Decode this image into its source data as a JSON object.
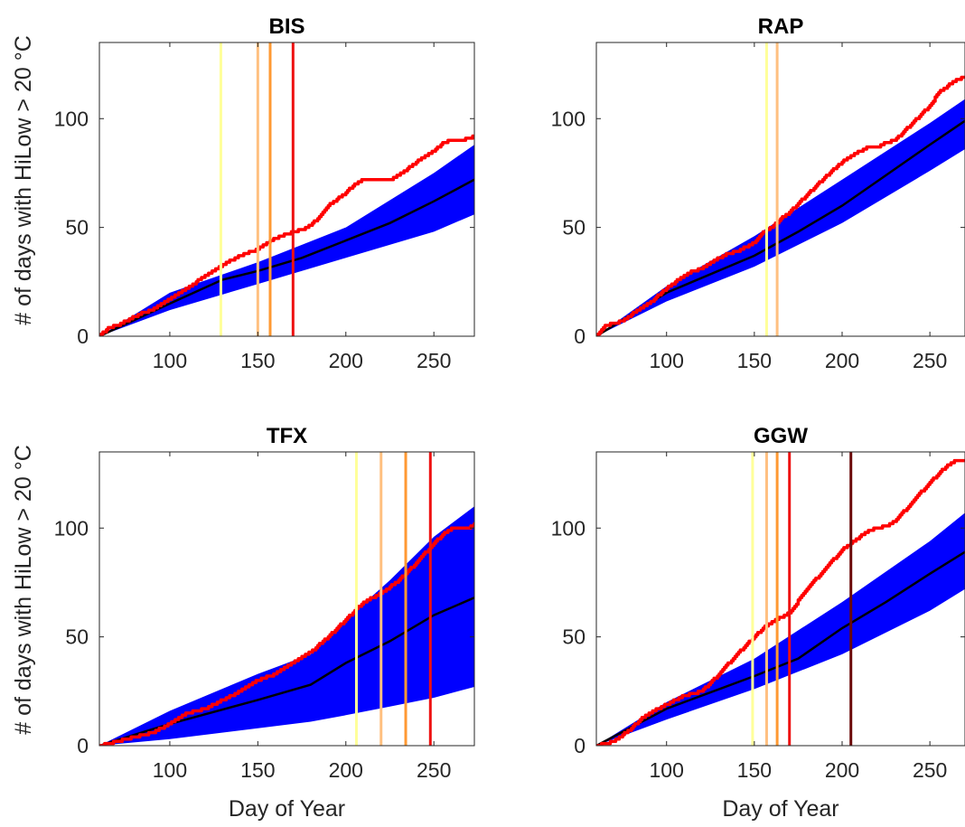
{
  "chart_data": [
    {
      "type": "area",
      "title": "BIS",
      "xlabel": "",
      "ylabel": "# of days with HiLow > 20 °C",
      "xlim": [
        60,
        273
      ],
      "ylim": [
        0,
        135
      ],
      "xticks": [
        100,
        150,
        200,
        250
      ],
      "yticks": [
        0,
        50,
        100
      ],
      "band": {
        "x": [
          60,
          100,
          150,
          200,
          250,
          273
        ],
        "lower": [
          0,
          12,
          24,
          36,
          48,
          56
        ],
        "upper": [
          0,
          20,
          34,
          50,
          75,
          88
        ]
      },
      "mean": {
        "x": [
          60,
          100,
          130,
          150,
          175,
          200,
          225,
          250,
          273
        ],
        "y": [
          0,
          15,
          26,
          30,
          36,
          44,
          52,
          62,
          72
        ]
      },
      "observed": {
        "x": [
          60,
          65,
          70,
          75,
          80,
          85,
          90,
          95,
          100,
          105,
          110,
          115,
          120,
          125,
          130,
          140,
          150,
          160,
          170,
          175,
          180,
          185,
          190,
          195,
          200,
          205,
          210,
          220,
          225,
          230,
          240,
          250,
          255,
          260,
          265,
          270,
          273
        ],
        "y": [
          0,
          4,
          5,
          7,
          9,
          11,
          12,
          15,
          17,
          20,
          22,
          25,
          28,
          30,
          33,
          37,
          40,
          45,
          48,
          49,
          51,
          55,
          60,
          63,
          66,
          70,
          72,
          72,
          72,
          74,
          80,
          85,
          89,
          90,
          90,
          91,
          92
        ]
      },
      "vlines": [
        {
          "x": 129,
          "color": "#ffff99"
        },
        {
          "x": 150,
          "color": "#ffc080"
        },
        {
          "x": 157,
          "color": "#ff9933"
        },
        {
          "x": 170,
          "color": "#ee1111"
        }
      ]
    },
    {
      "type": "area",
      "title": "RAP",
      "xlabel": "",
      "ylabel": "",
      "xlim": [
        60,
        270
      ],
      "ylim": [
        0,
        135
      ],
      "xticks": [
        100,
        150,
        200,
        250
      ],
      "yticks": [
        0,
        50,
        100
      ],
      "band": {
        "x": [
          60,
          100,
          150,
          200,
          250,
          270
        ],
        "lower": [
          0,
          16,
          32,
          52,
          76,
          86
        ],
        "upper": [
          0,
          23,
          46,
          72,
          98,
          109
        ]
      },
      "mean": {
        "x": [
          60,
          100,
          150,
          175,
          200,
          225,
          250,
          270
        ],
        "y": [
          0,
          20,
          37,
          48,
          60,
          74,
          88,
          99
        ]
      },
      "observed": {
        "x": [
          60,
          65,
          70,
          75,
          80,
          90,
          100,
          110,
          115,
          120,
          125,
          130,
          135,
          140,
          150,
          155,
          160,
          165,
          170,
          180,
          190,
          200,
          210,
          215,
          220,
          225,
          230,
          240,
          250,
          255,
          260,
          265,
          270
        ],
        "y": [
          0,
          5,
          6,
          7,
          10,
          15,
          22,
          28,
          30,
          31,
          34,
          36,
          38,
          39,
          43,
          48,
          50,
          54,
          57,
          65,
          73,
          80,
          85,
          87,
          87,
          89,
          90,
          98,
          106,
          112,
          115,
          118,
          119
        ]
      },
      "vlines": [
        {
          "x": 157,
          "color": "#ffff99"
        },
        {
          "x": 163,
          "color": "#ffc080"
        }
      ]
    },
    {
      "type": "area",
      "title": "TFX",
      "xlabel": "Day of Year",
      "ylabel": "# of days with HiLow > 20 °C",
      "xlim": [
        60,
        273
      ],
      "ylim": [
        0,
        135
      ],
      "xticks": [
        100,
        150,
        200,
        250
      ],
      "yticks": [
        0,
        50,
        100
      ],
      "band": {
        "x": [
          60,
          100,
          150,
          180,
          200,
          225,
          250,
          273
        ],
        "lower": [
          0,
          3,
          8,
          11,
          14,
          18,
          22,
          27
        ],
        "upper": [
          0,
          16,
          33,
          42,
          58,
          76,
          96,
          110
        ]
      },
      "mean": {
        "x": [
          60,
          100,
          150,
          180,
          200,
          225,
          250,
          273
        ],
        "y": [
          0,
          10,
          21,
          28,
          38,
          48,
          60,
          68
        ]
      },
      "observed": {
        "x": [
          60,
          70,
          80,
          90,
          100,
          110,
          120,
          130,
          140,
          150,
          160,
          170,
          180,
          190,
          200,
          205,
          210,
          220,
          230,
          240,
          250,
          255,
          260,
          265,
          270,
          273
        ],
        "y": [
          0,
          2,
          4,
          6,
          10,
          15,
          17,
          21,
          25,
          30,
          33,
          38,
          43,
          50,
          58,
          62,
          66,
          70,
          76,
          84,
          93,
          97,
          100,
          100,
          100,
          102
        ]
      },
      "vlines": [
        {
          "x": 206,
          "color": "#ffff99"
        },
        {
          "x": 220,
          "color": "#ffc080"
        },
        {
          "x": 234,
          "color": "#ff9933"
        },
        {
          "x": 248,
          "color": "#ee1111"
        }
      ]
    },
    {
      "type": "area",
      "title": "GGW",
      "xlabel": "Day of Year",
      "ylabel": "",
      "xlim": [
        60,
        270
      ],
      "ylim": [
        0,
        135
      ],
      "xticks": [
        100,
        150,
        200,
        250
      ],
      "yticks": [
        0,
        50,
        100
      ],
      "band": {
        "x": [
          60,
          100,
          150,
          200,
          250,
          270
        ],
        "lower": [
          0,
          12,
          26,
          42,
          62,
          72
        ],
        "upper": [
          0,
          20,
          40,
          66,
          94,
          107
        ]
      },
      "mean": {
        "x": [
          60,
          100,
          150,
          175,
          200,
          225,
          250,
          270
        ],
        "y": [
          0,
          17,
          32,
          40,
          54,
          66,
          79,
          89
        ]
      },
      "observed": {
        "x": [
          60,
          70,
          75,
          80,
          85,
          90,
          100,
          110,
          120,
          130,
          140,
          150,
          155,
          160,
          170,
          180,
          190,
          200,
          210,
          215,
          220,
          225,
          230,
          240,
          250,
          255,
          260,
          265,
          270
        ],
        "y": [
          0,
          2,
          5,
          8,
          12,
          15,
          19,
          23,
          25,
          33,
          42,
          50,
          54,
          57,
          61,
          72,
          81,
          90,
          96,
          99,
          100,
          101,
          103,
          112,
          121,
          125,
          129,
          131,
          131
        ]
      },
      "vlines": [
        {
          "x": 149,
          "color": "#ffff99"
        },
        {
          "x": 157,
          "color": "#ffc080"
        },
        {
          "x": 163,
          "color": "#ff9933"
        },
        {
          "x": 170,
          "color": "#ee1111"
        },
        {
          "x": 205,
          "color": "#6b0a0a"
        }
      ]
    }
  ]
}
